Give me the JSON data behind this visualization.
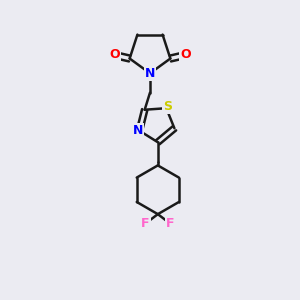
{
  "background_color": "#ebebf2",
  "bond_color": "#1a1a1a",
  "bond_width": 1.8,
  "atom_colors": {
    "O": "#ff0000",
    "N": "#0000ff",
    "S": "#cccc00",
    "F": "#ff66cc",
    "C": "#1a1a1a"
  },
  "font_size": 9,
  "fig_width": 3.0,
  "fig_height": 3.0,
  "dpi": 100
}
